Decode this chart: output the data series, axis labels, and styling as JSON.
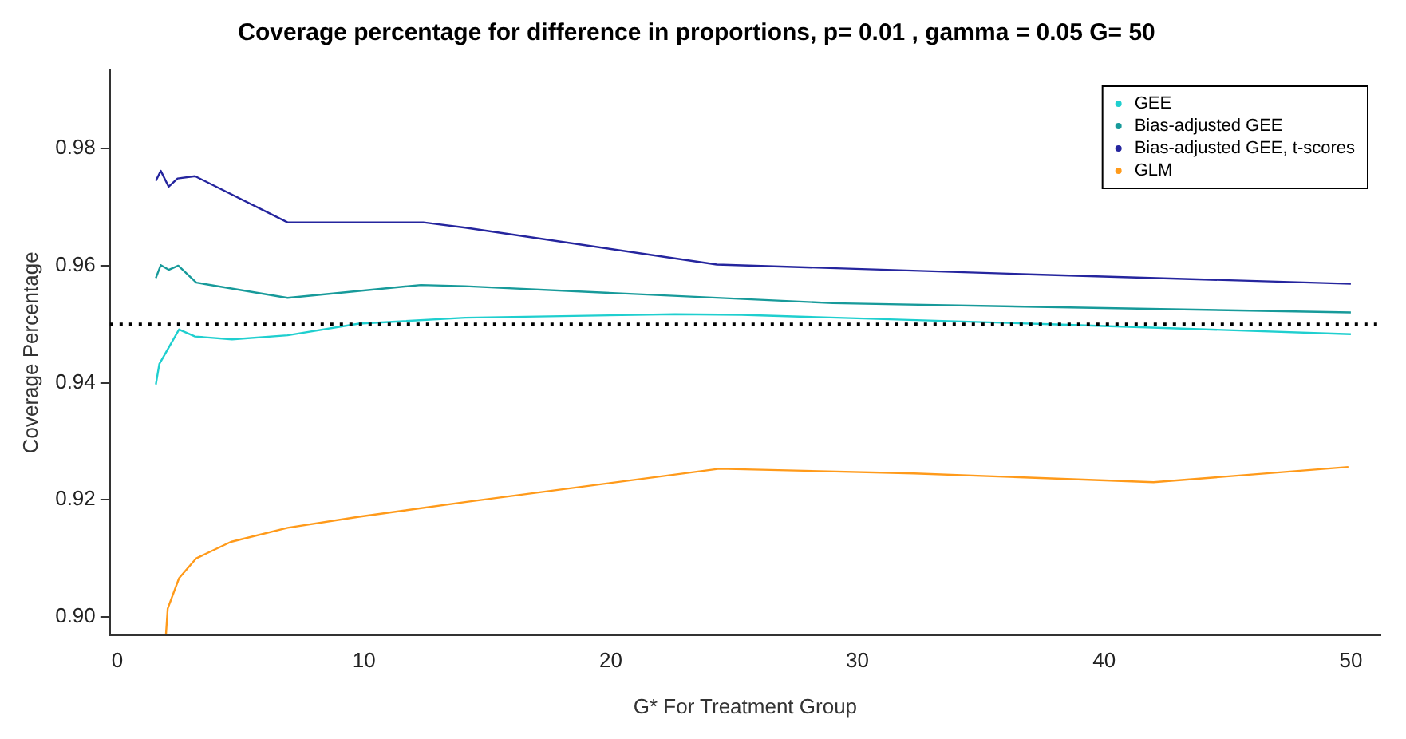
{
  "chart_data": {
    "type": "line",
    "title": "Coverage percentage for difference in proportions, p= 0.01 , gamma = 0.05 G= 50",
    "xlabel": "G* For Treatment Group",
    "ylabel": "Coverage Percentage",
    "xlim": [
      -0.3,
      51.2
    ],
    "xticks": [
      0,
      10,
      20,
      30,
      40,
      50
    ],
    "ylim": [
      0.8969,
      0.9934
    ],
    "yticks": [
      {
        "value": 0.9,
        "label": "0.90"
      },
      {
        "value": 0.92,
        "label": "0.92"
      },
      {
        "value": 0.94,
        "label": "0.94"
      },
      {
        "value": 0.96,
        "label": "0.96"
      },
      {
        "value": 0.98,
        "label": "0.98"
      }
    ],
    "grid": false,
    "legend": "top right",
    "marker": "none",
    "line_style": "solid",
    "ref_lines": [
      {
        "axis": "y",
        "value": 0.95,
        "color": "#000000",
        "line_style": "dotted"
      }
    ],
    "series": [
      {
        "name": "GEE",
        "color": "#1fcfcf",
        "x": [
          1.56,
          1.7,
          2.5,
          3.15,
          4.65,
          6.9,
          9.8,
          14.1,
          22.6,
          25.3,
          37.8,
          50
        ],
        "values": [
          0.9397,
          0.9432,
          0.9491,
          0.9479,
          0.9474,
          0.9481,
          0.9501,
          0.9511,
          0.9517,
          0.9516,
          0.95,
          0.9483
        ]
      },
      {
        "name": "Bias-adjusted GEE",
        "color": "#179a9a",
        "x": [
          1.56,
          1.76,
          2.08,
          2.47,
          3.2,
          6.9,
          12.3,
          14.1,
          29,
          50
        ],
        "values": [
          0.9579,
          0.9601,
          0.9593,
          0.96,
          0.9571,
          0.9545,
          0.9567,
          0.9565,
          0.9536,
          0.952
        ]
      },
      {
        "name": "Bias-adjusted GEE, t-scores",
        "color": "#25259e",
        "x": [
          1.56,
          1.76,
          2.08,
          2.44,
          3.15,
          6.9,
          12.4,
          14.1,
          24.3,
          36.4,
          50
        ],
        "values": [
          0.9745,
          0.9762,
          0.9735,
          0.9749,
          0.9753,
          0.9674,
          0.9674,
          0.9665,
          0.9602,
          0.9586,
          0.9569
        ]
      },
      {
        "name": "GLM",
        "color": "#ff9a1a",
        "x": [
          1.97,
          2.04,
          2.5,
          3.2,
          4.6,
          6.9,
          9.8,
          14.1,
          24.4,
          32.3,
          42,
          49.9
        ],
        "values": [
          0.897,
          0.9014,
          0.9066,
          0.91,
          0.9128,
          0.9152,
          0.9171,
          0.9196,
          0.9253,
          0.9245,
          0.923,
          0.9256
        ]
      }
    ]
  }
}
